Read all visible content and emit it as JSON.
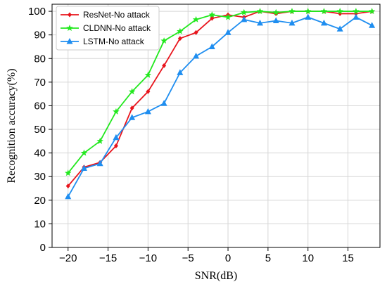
{
  "chart_data": {
    "type": "line",
    "xlabel": "SNR(dB)",
    "ylabel": "Recognition accuracy(%)",
    "xlim": [
      -22,
      19
    ],
    "ylim": [
      0,
      103
    ],
    "xticks": [
      -20,
      -15,
      -10,
      -5,
      0,
      5,
      10,
      15
    ],
    "yticks": [
      0,
      10,
      20,
      30,
      40,
      50,
      60,
      70,
      80,
      90,
      100
    ],
    "grid": true,
    "legend_position": "top-left",
    "x": [
      -20,
      -18,
      -16,
      -14,
      -12,
      -10,
      -8,
      -6,
      -4,
      -2,
      0,
      2,
      4,
      6,
      8,
      10,
      12,
      14,
      16,
      18
    ],
    "series": [
      {
        "name": "ResNet-No attack",
        "color": "#e8141c",
        "marker": "diamond",
        "values": [
          26,
          34,
          36,
          43,
          59,
          66,
          77,
          88.5,
          91,
          97,
          98.5,
          97.5,
          100,
          99,
          100,
          100,
          100,
          99,
          99,
          100
        ]
      },
      {
        "name": "CLDNN-No attack",
        "color": "#22e81e",
        "marker": "star",
        "values": [
          31.5,
          40,
          45,
          57.5,
          66,
          73,
          87.5,
          91.5,
          96.5,
          98.5,
          97.5,
          99.5,
          100,
          99.5,
          100,
          100,
          100,
          100,
          100,
          100
        ]
      },
      {
        "name": "LSTM-No attack",
        "color": "#1f8ef0",
        "marker": "triangle",
        "values": [
          21.5,
          33.5,
          35.5,
          46.5,
          55,
          57.5,
          61,
          74,
          81,
          85,
          91,
          96.5,
          95,
          96,
          95,
          97.5,
          95,
          92.5,
          97.5,
          94
        ]
      }
    ]
  }
}
